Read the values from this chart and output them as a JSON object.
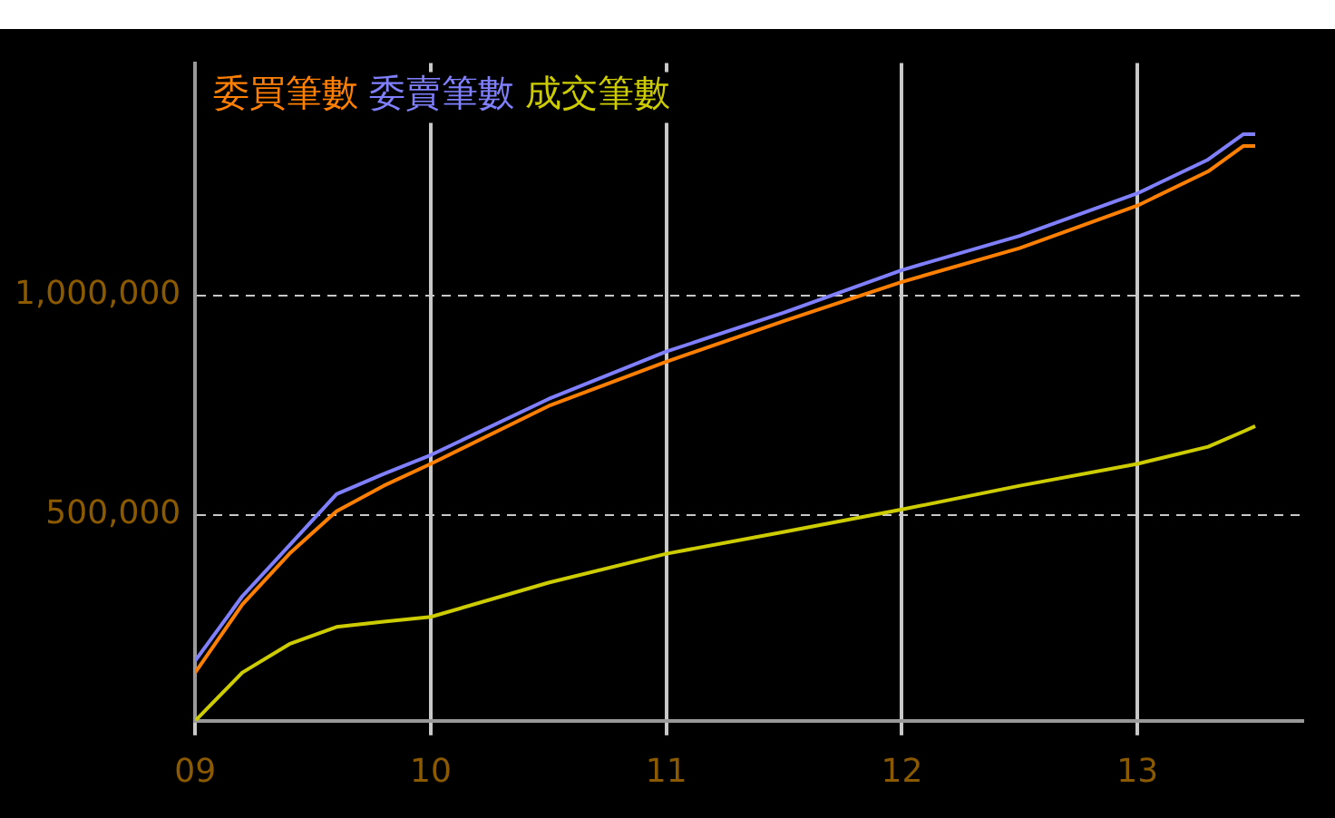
{
  "chart_data": {
    "type": "line",
    "legend": "top left",
    "grid": true,
    "line_style": "solid",
    "marker": "none",
    "x": [
      9,
      9.2,
      9.4,
      9.6,
      9.8,
      10,
      10.5,
      11,
      11.5,
      12,
      12.5,
      13,
      13.3,
      13.45,
      13.5
    ],
    "xlim": [
      9,
      13.7
    ],
    "xticks": [
      {
        "value": 9,
        "label": "09"
      },
      {
        "value": 10,
        "label": "10"
      },
      {
        "value": 11,
        "label": "11"
      },
      {
        "value": 12,
        "label": "12"
      },
      {
        "value": 13,
        "label": "13"
      }
    ],
    "ylim": [
      30000,
      1530000
    ],
    "yticks": [
      {
        "value": 500000,
        "label": "500,000"
      },
      {
        "value": 1000000,
        "label": "1,000,000"
      }
    ],
    "series": [
      {
        "name": "委買筆數",
        "color": "#ff8000",
        "values": [
          140000,
          295000,
          411000,
          508000,
          566000,
          616000,
          748000,
          849000,
          942000,
          1031000,
          1108000,
          1205000,
          1283000,
          1341000,
          1341000
        ]
      },
      {
        "name": "委賣筆數",
        "color": "#8080ff",
        "values": [
          167000,
          314000,
          430000,
          547000,
          593000,
          636000,
          764000,
          872000,
          961000,
          1058000,
          1136000,
          1233000,
          1310000,
          1368000,
          1368000
        ]
      },
      {
        "name": "成交筆數",
        "color": "#cccc00",
        "values": [
          30000,
          140000,
          205000,
          244000,
          256000,
          267000,
          345000,
          411000,
          461000,
          512000,
          566000,
          616000,
          655000,
          690000,
          702000
        ]
      }
    ]
  }
}
